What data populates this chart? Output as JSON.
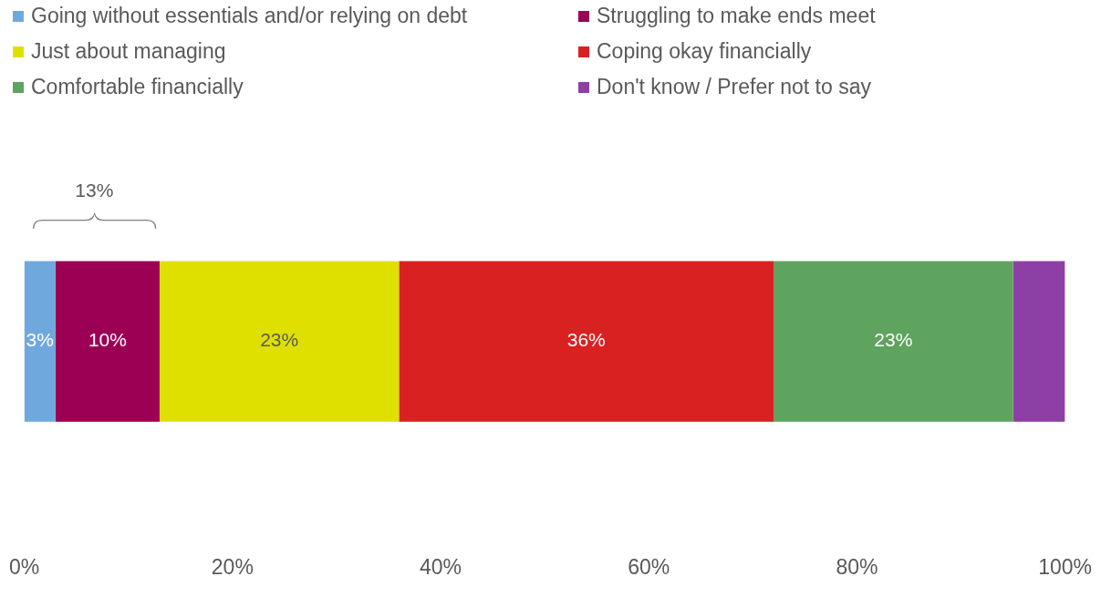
{
  "chart_data": {
    "type": "bar",
    "orientation": "horizontal",
    "stacked": true,
    "categories": [
      null
    ],
    "series": [
      {
        "name": "Going without essentials and/or relying on debt",
        "color": "#6fa8dc",
        "values": [
          3
        ],
        "value_labels": [
          "3%"
        ]
      },
      {
        "name": "Struggling to make ends meet",
        "color": "#9c0055",
        "values": [
          10
        ],
        "value_labels": [
          "10%"
        ]
      },
      {
        "name": "Just about managing",
        "color": "#e0e000",
        "values": [
          23
        ],
        "value_labels": [
          "23%"
        ]
      },
      {
        "name": "Coping okay financially",
        "color": "#d92121",
        "values": [
          36
        ],
        "value_labels": [
          "36%"
        ]
      },
      {
        "name": "Comfortable financially",
        "color": "#5ea35e",
        "values": [
          23
        ],
        "value_labels": [
          "23%"
        ]
      },
      {
        "name": "Don't know / Prefer not to say",
        "color": "#8e3fa6",
        "values": [
          5
        ],
        "value_labels": [
          null
        ]
      }
    ],
    "xlim": [
      0,
      100
    ],
    "xticks": [
      {
        "value": 0,
        "label": "0%"
      },
      {
        "value": 20,
        "label": "20%"
      },
      {
        "value": 40,
        "label": "40%"
      },
      {
        "value": 60,
        "label": "60%"
      },
      {
        "value": 80,
        "label": "80%"
      },
      {
        "value": 100,
        "label": "100%"
      }
    ],
    "annotations": [
      "13%"
    ],
    "grid": false,
    "legend": "top",
    "tick_labels": "x"
  }
}
